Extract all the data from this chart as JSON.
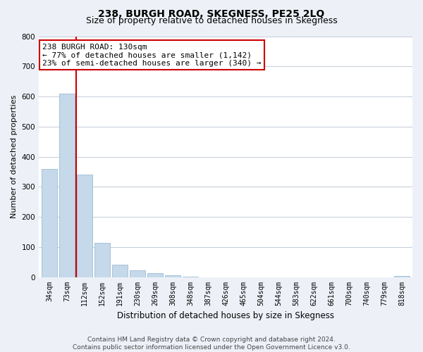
{
  "title1": "238, BURGH ROAD, SKEGNESS, PE25 2LQ",
  "title2": "Size of property relative to detached houses in Skegness",
  "xlabel": "Distribution of detached houses by size in Skegness",
  "ylabel": "Number of detached properties",
  "bar_labels": [
    "34sqm",
    "73sqm",
    "112sqm",
    "152sqm",
    "191sqm",
    "230sqm",
    "269sqm",
    "308sqm",
    "348sqm",
    "387sqm",
    "426sqm",
    "465sqm",
    "504sqm",
    "544sqm",
    "583sqm",
    "622sqm",
    "661sqm",
    "700sqm",
    "740sqm",
    "779sqm",
    "818sqm"
  ],
  "bar_values": [
    360,
    610,
    340,
    113,
    40,
    22,
    13,
    5,
    1,
    0,
    0,
    0,
    0,
    0,
    0,
    0,
    0,
    0,
    0,
    0,
    3
  ],
  "bar_color": "#c5d9ea",
  "bar_edge_color": "#9bbcd4",
  "highlight_color": "#cc0000",
  "annotation_title": "238 BURGH ROAD: 130sqm",
  "annotation_line1": "← 77% of detached houses are smaller (1,142)",
  "annotation_line2": "23% of semi-detached houses are larger (340) →",
  "annotation_box_facecolor": "#ffffff",
  "annotation_box_edgecolor": "#cc0000",
  "ylim": [
    0,
    800
  ],
  "yticks": [
    0,
    100,
    200,
    300,
    400,
    500,
    600,
    700,
    800
  ],
  "footer1": "Contains HM Land Registry data © Crown copyright and database right 2024.",
  "footer2": "Contains public sector information licensed under the Open Government Licence v3.0.",
  "bg_color": "#edf1f7",
  "plot_bg_color": "#ffffff",
  "grid_color": "#c5cdd8",
  "title1_fontsize": 10,
  "title2_fontsize": 9,
  "xlabel_fontsize": 8.5,
  "ylabel_fontsize": 8,
  "tick_fontsize": 7,
  "annotation_fontsize": 8,
  "footer_fontsize": 6.5
}
